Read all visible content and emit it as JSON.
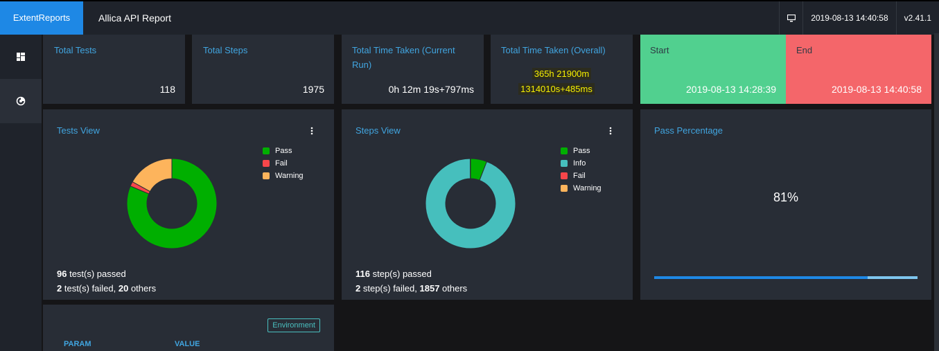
{
  "header": {
    "brand": "ExtentReports",
    "title": "Allica API Report",
    "timestamp": "2019-08-13 14:40:58",
    "version": "v2.41.1"
  },
  "sidebar": {
    "items": [
      {
        "name": "dashboard",
        "icon": "dashboard-icon"
      },
      {
        "name": "analytics",
        "icon": "chart-icon"
      }
    ]
  },
  "stats": {
    "total_tests": {
      "label": "Total Tests",
      "value": "118"
    },
    "total_steps": {
      "label": "Total Steps",
      "value": "1975"
    },
    "time_current": {
      "label": "Total Time Taken (Current Run)",
      "value": "0h 12m 19s+797ms"
    },
    "time_overall": {
      "label": "Total Time Taken (Overall)",
      "line1": "365h 21900m",
      "line2": "1314010s+485ms"
    },
    "start": {
      "label": "Start",
      "value": "2019-08-13 14:28:39"
    },
    "end": {
      "label": "End",
      "value": "2019-08-13 14:40:58"
    }
  },
  "tests_view": {
    "title": "Tests View",
    "legend": [
      "Pass",
      "Fail",
      "Warning"
    ],
    "summary_line1_num": "96",
    "summary_line1_text": " test(s) passed",
    "summary_line2_num1": "2",
    "summary_line2_text1": " test(s) failed, ",
    "summary_line2_num2": "20",
    "summary_line2_text2": " others"
  },
  "steps_view": {
    "title": "Steps View",
    "legend": [
      "Pass",
      "Info",
      "Fail",
      "Warning"
    ],
    "summary_line1_num": "116",
    "summary_line1_text": " step(s) passed",
    "summary_line2_num1": "2",
    "summary_line2_text1": " step(s) failed, ",
    "summary_line2_num2": "1857",
    "summary_line2_text2": " others"
  },
  "pass_percentage": {
    "title": "Pass Percentage",
    "value": "81%",
    "fraction": 0.81
  },
  "environment": {
    "badge": "Environment",
    "col_param": "PARAM",
    "col_value": "VALUE"
  },
  "colors": {
    "pass": "#00af00",
    "fail": "#f7464a",
    "warning": "#fdb45c",
    "info": "#46bfbd",
    "accent": "#1e88e5"
  },
  "chart_data": [
    {
      "type": "pie",
      "categories": [
        "Pass",
        "Fail",
        "Warning"
      ],
      "values": [
        96,
        2,
        20
      ]
    },
    {
      "type": "pie",
      "categories": [
        "Pass",
        "Info",
        "Fail",
        "Warning"
      ],
      "values": [
        116,
        1857,
        2,
        0
      ]
    }
  ]
}
